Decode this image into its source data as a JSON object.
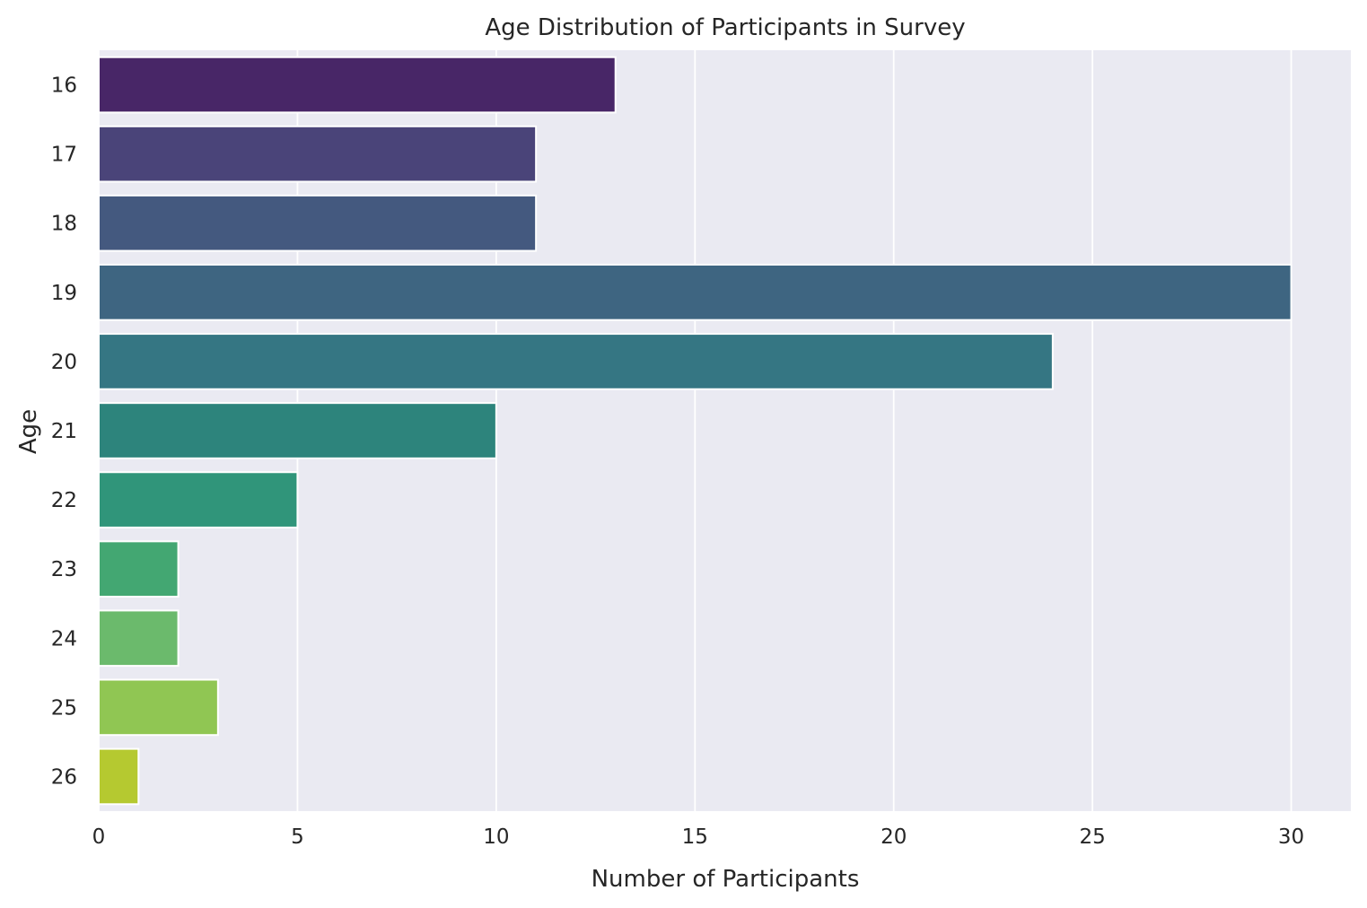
{
  "chart_data": {
    "type": "bar",
    "orientation": "horizontal",
    "title": "Age Distribution of Participants in Survey",
    "xlabel": "Number of Participants",
    "ylabel": "Age",
    "categories": [
      "16",
      "17",
      "18",
      "19",
      "20",
      "21",
      "22",
      "23",
      "24",
      "25",
      "26"
    ],
    "values": [
      13,
      11,
      11,
      30,
      24,
      10,
      5,
      2,
      2,
      3,
      1
    ],
    "colors": [
      "#482667",
      "#4a4479",
      "#44597f",
      "#3e6581",
      "#357683",
      "#2d847c",
      "#30957a",
      "#43a772",
      "#6bba6c",
      "#90c653",
      "#b5c930"
    ],
    "xlim": [
      0,
      31.5
    ],
    "xticks": [
      0,
      5,
      10,
      15,
      20,
      25,
      30
    ],
    "grid": true,
    "background": "#eaeaf2",
    "grid_color": "#ffffff"
  }
}
